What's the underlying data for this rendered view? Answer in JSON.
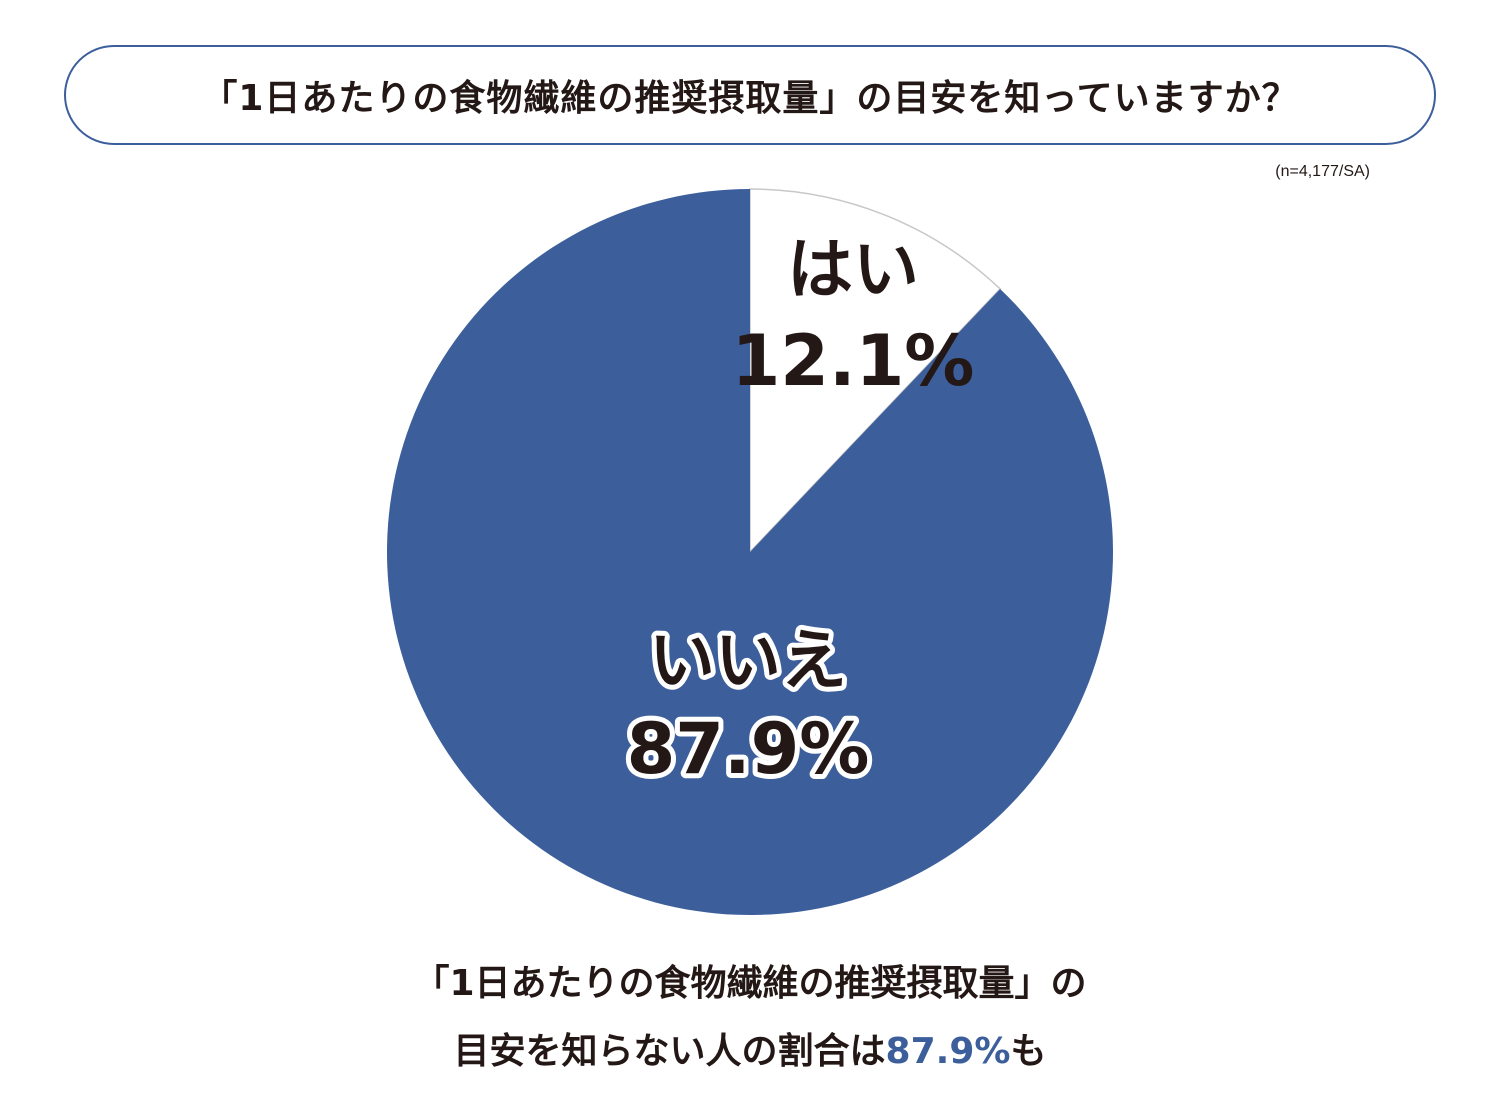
{
  "title": "「1日あたりの食物繊維の推奨摂取量」の目安を知っていますか？",
  "sample_note": "(n=4,177/SA)",
  "caption": {
    "line1": "「1日あたりの食物繊維の推奨摂取量」の",
    "line2_prefix": "目安を知らない人の割合は",
    "line2_highlight": "87.9%",
    "line2_suffix": "も"
  },
  "colors": {
    "accent": "#3c5f9c",
    "no_slice": "#3c5f9c",
    "yes_slice": "#ffffff",
    "outline": "#c8c8c8",
    "text": "#231815"
  },
  "chart_data": {
    "type": "pie",
    "slices": [
      {
        "label": "はい",
        "value": 12.1,
        "value_label": "12.1%",
        "color": "#ffffff"
      },
      {
        "label": "いいえ",
        "value": 87.9,
        "value_label": "87.9%",
        "color": "#3c5f9c"
      }
    ],
    "start": "12 o'clock",
    "direction": "clockwise"
  }
}
